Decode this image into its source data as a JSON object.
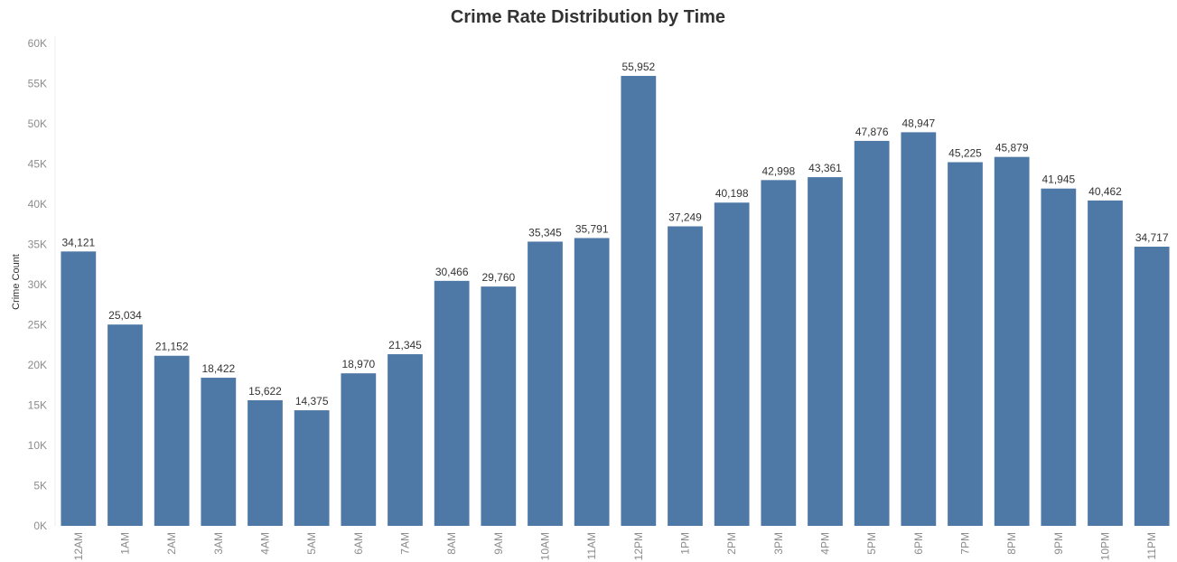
{
  "chart_data": {
    "type": "bar",
    "title": "Crime Rate Distribution by Time",
    "xlabel": "",
    "ylabel": "Crime Count",
    "ylim": [
      0,
      60000
    ],
    "yticks": [
      {
        "value": 0,
        "label": "0K"
      },
      {
        "value": 5000,
        "label": "5K"
      },
      {
        "value": 10000,
        "label": "10K"
      },
      {
        "value": 15000,
        "label": "15K"
      },
      {
        "value": 20000,
        "label": "20K"
      },
      {
        "value": 25000,
        "label": "25K"
      },
      {
        "value": 30000,
        "label": "30K"
      },
      {
        "value": 35000,
        "label": "35K"
      },
      {
        "value": 40000,
        "label": "40K"
      },
      {
        "value": 45000,
        "label": "45K"
      },
      {
        "value": 50000,
        "label": "50K"
      },
      {
        "value": 55000,
        "label": "55K"
      },
      {
        "value": 60000,
        "label": "60K"
      }
    ],
    "categories": [
      "12AM",
      "1AM",
      "2AM",
      "3AM",
      "4AM",
      "5AM",
      "6AM",
      "7AM",
      "8AM",
      "9AM",
      "10AM",
      "11AM",
      "12PM",
      "1PM",
      "2PM",
      "3PM",
      "4PM",
      "5PM",
      "6PM",
      "7PM",
      "8PM",
      "9PM",
      "10PM",
      "11PM"
    ],
    "values": [
      34121,
      25034,
      21152,
      18422,
      15622,
      14375,
      18970,
      21345,
      30466,
      29760,
      35345,
      35791,
      55952,
      37249,
      40198,
      42998,
      43361,
      47876,
      48947,
      45225,
      45879,
      41945,
      40462,
      34717
    ],
    "value_labels": [
      "34,121",
      "25,034",
      "21,152",
      "18,422",
      "15,622",
      "14,375",
      "18,970",
      "21,345",
      "30,466",
      "29,760",
      "35,345",
      "35,791",
      "55,952",
      "37,249",
      "40,198",
      "42,998",
      "43,361",
      "47,876",
      "48,947",
      "45,225",
      "45,879",
      "41,945",
      "40,462",
      "34,717"
    ],
    "bar_color": "#4e79a7",
    "grid": false,
    "legend": "none"
  }
}
